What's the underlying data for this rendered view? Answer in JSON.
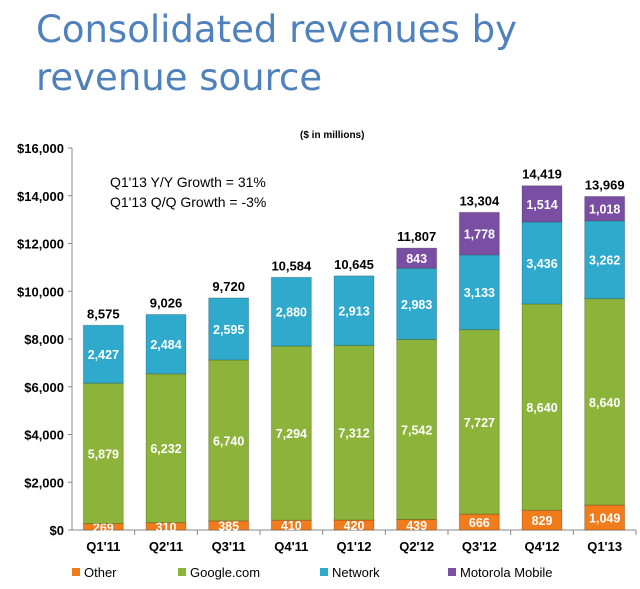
{
  "chart_data": {
    "type": "bar",
    "stacked": true,
    "title": "Consolidated revenues by revenue source",
    "subtitle": "($ in millions)",
    "annotations": [
      "Q1'13 Y/Y Growth = 31%",
      "Q1'13 Q/Q Growth = -3%"
    ],
    "categories": [
      "Q1'11",
      "Q2'11",
      "Q3'11",
      "Q4'11",
      "Q1'12",
      "Q2'12",
      "Q3'12",
      "Q4'12",
      "Q1'13"
    ],
    "series": [
      {
        "name": "Other",
        "color": "#f07c1c",
        "values": [
          269,
          310,
          385,
          410,
          420,
          439,
          666,
          829,
          1049
        ]
      },
      {
        "name": "Google.com",
        "color": "#8db43a",
        "values": [
          5879,
          6232,
          6740,
          7294,
          7312,
          7542,
          7727,
          8640,
          8640
        ]
      },
      {
        "name": "Network",
        "color": "#2fa9cc",
        "values": [
          2427,
          2484,
          2595,
          2880,
          2913,
          2983,
          3133,
          3436,
          3262
        ]
      },
      {
        "name": "Motorola Mobile",
        "color": "#7a4fa3",
        "values": [
          0,
          0,
          0,
          0,
          0,
          843,
          1778,
          1514,
          1018
        ]
      }
    ],
    "totals": [
      "8,575",
      "9,026",
      "9,720",
      "10,584",
      "10,645",
      "11,807",
      "13,304",
      "14,419",
      "13,969"
    ],
    "ylim": [
      0,
      16000
    ],
    "yticks": [
      "$0",
      "$2,000",
      "$4,000",
      "$6,000",
      "$8,000",
      "$10,000",
      "$12,000",
      "$14,000",
      "$16,000"
    ],
    "legend": "bottom"
  }
}
